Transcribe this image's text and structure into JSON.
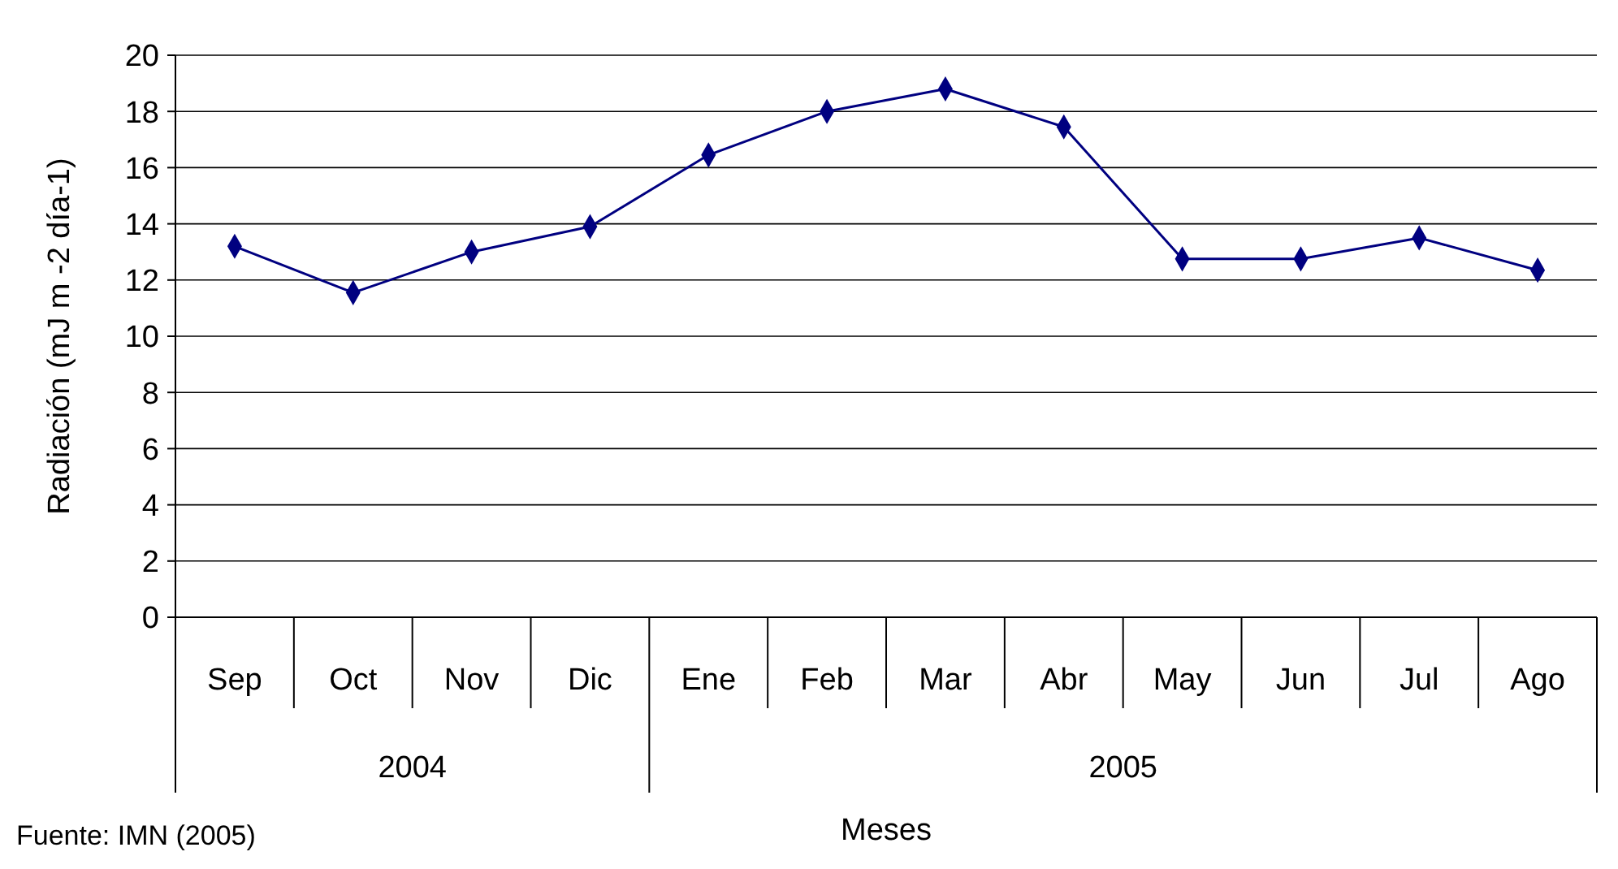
{
  "chart_data": {
    "type": "line",
    "xlabel": "Meses",
    "ylabel": "Radiación (mJ m -2 día-1)",
    "categories": [
      "Sep",
      "Oct",
      "Nov",
      "Dic",
      "Ene",
      "Feb",
      "Mar",
      "Abr",
      "May",
      "Jun",
      "Jul",
      "Ago"
    ],
    "series": [
      {
        "color": "#000080",
        "values": [
          13.2,
          11.55,
          13.0,
          13.9,
          16.45,
          18.0,
          18.8,
          17.45,
          12.75,
          12.75,
          13.5,
          12.35
        ]
      }
    ],
    "ylim": [
      0,
      20
    ],
    "yticks": [
      0,
      2,
      4,
      6,
      8,
      10,
      12,
      14,
      16,
      18,
      20
    ],
    "grid": "y",
    "marker": "diamond",
    "line_style": "solid",
    "annotations": [
      "2004",
      "2005",
      "Fuente: IMN (2005)"
    ]
  }
}
